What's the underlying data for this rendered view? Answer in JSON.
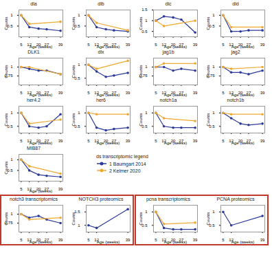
{
  "legend_title": "ds transcriptomic legend",
  "chart_data": [
    {
      "type": "line",
      "title": "dla",
      "x_label": "Age (weeks)",
      "y_label": "Counts",
      "xlim": [
        3,
        41
      ],
      "xticks": [
        5,
        12,
        20,
        27,
        39
      ],
      "ylim": [
        0,
        1.25
      ],
      "yticks": [
        0.5,
        1
      ],
      "series": [
        {
          "name": "1 Baumgart 2014",
          "color": "#2b3a9b",
          "marker": "circle",
          "x": [
            5,
            12,
            20,
            27,
            39
          ],
          "values": [
            1.0,
            0.45,
            0.38,
            0.35,
            0.28
          ]
        },
        {
          "name": "2 Kelmer 2020",
          "color": "#f0a830",
          "marker": "circle",
          "x": [
            5,
            12,
            39
          ],
          "values": [
            1.0,
            0.6,
            0.7
          ]
        }
      ]
    },
    {
      "type": "line",
      "title": "dlb",
      "x_label": "Age (weeks)",
      "y_label": "Counts",
      "xlim": [
        3,
        41
      ],
      "xticks": [
        5,
        12,
        20,
        27,
        39
      ],
      "ylim": [
        0,
        1.25
      ],
      "yticks": [
        0.5,
        1
      ],
      "series": [
        {
          "name": "1 Baumgart 2014",
          "color": "#2b3a9b",
          "marker": "circle",
          "x": [
            5,
            12,
            20,
            27,
            39
          ],
          "values": [
            1.0,
            0.45,
            0.35,
            0.3,
            0.25
          ]
        },
        {
          "name": "2 Kelmer 2020",
          "color": "#f0a830",
          "marker": "circle",
          "x": [
            5,
            12,
            39
          ],
          "values": [
            1.0,
            0.65,
            0.3
          ]
        }
      ]
    },
    {
      "type": "line",
      "title": "dlc",
      "x_label": "Age (weeks)",
      "y_label": "Counts",
      "xlim": [
        3,
        41
      ],
      "xticks": [
        5,
        12,
        20,
        27,
        39
      ],
      "ylim": [
        0.25,
        1.5
      ],
      "yticks": [
        0.5,
        1,
        1.5
      ],
      "series": [
        {
          "name": "1 Baumgart 2014",
          "color": "#2b3a9b",
          "marker": "circle",
          "x": [
            5,
            12,
            20,
            27,
            39
          ],
          "values": [
            1.0,
            1.2,
            1.15,
            1.05,
            0.45
          ]
        },
        {
          "name": "2 Kelmer 2020",
          "color": "#f0a830",
          "marker": "circle",
          "x": [
            5,
            12,
            39
          ],
          "values": [
            1.0,
            0.75,
            1.0
          ]
        }
      ]
    },
    {
      "type": "line",
      "title": "dld",
      "x_label": "Age (weeks)",
      "y_label": "Counts",
      "xlim": [
        3,
        41
      ],
      "xticks": [
        5,
        12,
        20,
        27,
        39
      ],
      "ylim": [
        0,
        1.25
      ],
      "yticks": [
        0.5,
        1
      ],
      "series": [
        {
          "name": "1 Baumgart 2014",
          "color": "#2b3a9b",
          "marker": "circle",
          "x": [
            5,
            12,
            20,
            27,
            39
          ],
          "values": [
            1.0,
            0.25,
            0.25,
            0.3,
            0.3
          ]
        },
        {
          "name": "2 Kelmer 2020",
          "color": "#f0a830",
          "marker": "circle",
          "x": [
            5,
            12,
            39
          ],
          "values": [
            1.0,
            0.45,
            0.45
          ]
        }
      ]
    },
    {
      "type": "line",
      "title": "DLK1",
      "x_label": "Age (weeks)",
      "y_label": "Counts",
      "xlim": [
        3,
        41
      ],
      "xticks": [
        5,
        12,
        20,
        27,
        39
      ],
      "ylim": [
        0.5,
        1.25
      ],
      "yticks": [
        0.75,
        1
      ],
      "series": [
        {
          "name": "1 Baumgart 2014",
          "color": "#2b3a9b",
          "marker": "circle",
          "x": [
            5,
            12,
            20,
            27,
            39
          ],
          "values": [
            1.0,
            0.95,
            0.9,
            0.9,
            0.8
          ]
        },
        {
          "name": "2 Kelmer 2020",
          "color": "#f0a830",
          "marker": "circle",
          "x": [
            5,
            12,
            39
          ],
          "values": [
            1.0,
            1.0,
            0.8
          ]
        }
      ]
    },
    {
      "type": "line",
      "title": "dlx",
      "x_label": "Age (weeks)",
      "y_label": "Counts",
      "xlim": [
        3,
        41
      ],
      "xticks": [
        5,
        12,
        20,
        27,
        39
      ],
      "ylim": [
        0.25,
        1.25
      ],
      "yticks": [
        0.5,
        1
      ],
      "series": [
        {
          "name": "1 Baumgart 2014",
          "color": "#2b3a9b",
          "marker": "circle",
          "x": [
            5,
            12,
            20,
            27,
            39
          ],
          "values": [
            1.0,
            0.75,
            0.55,
            0.6,
            0.7
          ]
        },
        {
          "name": "2 Kelmer 2020",
          "color": "#f0a830",
          "marker": "circle",
          "x": [
            5,
            12,
            39
          ],
          "values": [
            1.0,
            0.85,
            1.15
          ]
        }
      ]
    },
    {
      "type": "line",
      "title": "jag1b",
      "x_label": "Age (weeks)",
      "y_label": "Counts",
      "xlim": [
        3,
        41
      ],
      "xticks": [
        5,
        12,
        20,
        27,
        39
      ],
      "ylim": [
        0.5,
        1.25
      ],
      "yticks": [
        0.75,
        1
      ],
      "series": [
        {
          "name": "1 Baumgart 2014",
          "color": "#2b3a9b",
          "marker": "circle",
          "x": [
            5,
            12,
            20,
            27,
            39
          ],
          "values": [
            1.0,
            1.0,
            0.9,
            0.95,
            0.9
          ]
        },
        {
          "name": "2 Kelmer 2020",
          "color": "#f0a830",
          "marker": "circle",
          "x": [
            5,
            12,
            39
          ],
          "values": [
            1.0,
            1.1,
            1.1
          ]
        }
      ]
    },
    {
      "type": "line",
      "title": "jag2",
      "x_label": "Age (weeks)",
      "y_label": "Counts",
      "xlim": [
        3,
        41
      ],
      "xticks": [
        5,
        12,
        20,
        27,
        39
      ],
      "ylim": [
        0.5,
        1.25
      ],
      "yticks": [
        0.75,
        1
      ],
      "series": [
        {
          "name": "1 Baumgart 2014",
          "color": "#2b3a9b",
          "marker": "circle",
          "x": [
            5,
            12,
            20,
            27,
            39
          ],
          "values": [
            1.0,
            0.85,
            0.85,
            0.8,
            0.9
          ]
        },
        {
          "name": "2 Kelmer 2020",
          "color": "#f0a830",
          "marker": "circle",
          "x": [
            5,
            12,
            39
          ],
          "values": [
            1.0,
            0.95,
            1.0
          ]
        }
      ]
    },
    {
      "type": "line",
      "title": "her4.2",
      "x_label": "Age (weeks)",
      "y_label": "Counts",
      "xlim": [
        3,
        41
      ],
      "xticks": [
        5,
        12,
        20,
        27,
        39
      ],
      "ylim": [
        0.25,
        1.25
      ],
      "yticks": [
        0.5,
        1
      ],
      "series": [
        {
          "name": "1 Baumgart 2014",
          "color": "#2b3a9b",
          "marker": "circle",
          "x": [
            5,
            12,
            20,
            27,
            39
          ],
          "values": [
            1.0,
            0.5,
            0.45,
            0.5,
            0.95
          ]
        },
        {
          "name": "2 Kelmer 2020",
          "color": "#f0a830",
          "marker": "circle",
          "x": [
            5,
            12,
            39
          ],
          "values": [
            1.0,
            0.6,
            0.75
          ]
        }
      ]
    },
    {
      "type": "line",
      "title": "her6",
      "x_label": "Age (weeks)",
      "y_label": "Counts",
      "xlim": [
        3,
        41
      ],
      "xticks": [
        5,
        12,
        20,
        27,
        39
      ],
      "ylim": [
        0.25,
        1.25
      ],
      "yticks": [
        0.5,
        1
      ],
      "series": [
        {
          "name": "1 Baumgart 2014",
          "color": "#2b3a9b",
          "marker": "circle",
          "x": [
            5,
            12,
            20,
            27,
            39
          ],
          "values": [
            1.0,
            0.45,
            0.35,
            0.4,
            0.45
          ]
        },
        {
          "name": "2 Kelmer 2020",
          "color": "#f0a830",
          "marker": "circle",
          "x": [
            5,
            12,
            39
          ],
          "values": [
            1.0,
            0.95,
            0.95
          ]
        }
      ]
    },
    {
      "type": "line",
      "title": "notch1a",
      "x_label": "Age (weeks)",
      "y_label": "Counts",
      "xlim": [
        3,
        41
      ],
      "xticks": [
        5,
        12,
        20,
        27,
        39
      ],
      "ylim": [
        0.25,
        1.25
      ],
      "yticks": [
        0.5,
        1
      ],
      "series": [
        {
          "name": "1 Baumgart 2014",
          "color": "#2b3a9b",
          "marker": "circle",
          "x": [
            5,
            12,
            20,
            27,
            39
          ],
          "values": [
            1.0,
            0.5,
            0.45,
            0.45,
            0.45
          ]
        },
        {
          "name": "2 Kelmer 2020",
          "color": "#f0a830",
          "marker": "circle",
          "x": [
            5,
            12,
            39
          ],
          "values": [
            1.0,
            0.8,
            0.7
          ]
        }
      ]
    },
    {
      "type": "line",
      "title": "notch1b",
      "x_label": "Age (weeks)",
      "y_label": "Counts",
      "xlim": [
        3,
        41
      ],
      "xticks": [
        5,
        12,
        20,
        27,
        39
      ],
      "ylim": [
        0.25,
        1.25
      ],
      "yticks": [
        0.5,
        1
      ],
      "series": [
        {
          "name": "1 Baumgart 2014",
          "color": "#2b3a9b",
          "marker": "circle",
          "x": [
            5,
            12,
            20,
            27,
            39
          ],
          "values": [
            1.0,
            0.8,
            0.6,
            0.55,
            0.6
          ]
        },
        {
          "name": "2 Kelmer 2020",
          "color": "#f0a830",
          "marker": "circle",
          "x": [
            5,
            12,
            39
          ],
          "values": [
            1.0,
            0.95,
            0.95
          ]
        }
      ]
    },
    {
      "type": "line",
      "title": "MIB87",
      "x_label": "Age (weeks)",
      "y_label": "Counts",
      "xlim": [
        3,
        41
      ],
      "xticks": [
        5,
        12,
        20,
        27,
        39
      ],
      "ylim": [
        0,
        1.25
      ],
      "yticks": [
        0.5,
        1
      ],
      "series": [
        {
          "name": "1 Baumgart 2014",
          "color": "#2b3a9b",
          "marker": "circle",
          "x": [
            5,
            12,
            20,
            27,
            39
          ],
          "values": [
            1.0,
            0.5,
            0.3,
            0.25,
            0.2
          ]
        },
        {
          "name": "2 Kelmer 2020",
          "color": "#f0a830",
          "marker": "circle",
          "x": [
            5,
            12,
            39
          ],
          "values": [
            1.0,
            0.7,
            0.35
          ]
        }
      ]
    },
    {
      "type": "line",
      "title": "notch3 transcriptomics",
      "x_label": "Age (weeks)",
      "y_label": "Counts",
      "xlim": [
        3,
        41
      ],
      "xticks": [
        5,
        12,
        20,
        27,
        39
      ],
      "ylim": [
        0.5,
        1.25
      ],
      "yticks": [
        0.75,
        1
      ],
      "series": [
        {
          "name": "1 Baumgart 2014",
          "color": "#2b3a9b",
          "marker": "circle",
          "x": [
            5,
            12,
            20,
            27,
            39
          ],
          "values": [
            1.0,
            0.9,
            0.95,
            0.85,
            0.75
          ]
        },
        {
          "name": "2 Kelmer 2020",
          "color": "#f0a830",
          "marker": "circle",
          "x": [
            5,
            12,
            39
          ],
          "values": [
            1.0,
            0.85,
            0.9
          ]
        }
      ]
    },
    {
      "type": "line",
      "title": "NOTCH3 proteomics",
      "x_label": "Age (weeks)",
      "y_label": "Counts",
      "xlim": [
        3,
        41
      ],
      "xticks": [
        5,
        12,
        39
      ],
      "ylim": [
        0.75,
        1.75
      ],
      "yticks": [
        1,
        1.5
      ],
      "series": [
        {
          "color": "#2b3a9b",
          "marker": "circle",
          "x": [
            5,
            12,
            39
          ],
          "values": [
            1.0,
            0.9,
            1.6
          ]
        }
      ]
    },
    {
      "type": "line",
      "title": "pcna transcriptomics",
      "x_label": "Age (weeks)",
      "y_label": "Counts",
      "xlim": [
        3,
        41
      ],
      "xticks": [
        5,
        12,
        20,
        27,
        39
      ],
      "ylim": [
        0.25,
        1.25
      ],
      "yticks": [
        0.5,
        1
      ],
      "series": [
        {
          "name": "1 Baumgart 2014",
          "color": "#2b3a9b",
          "marker": "circle",
          "x": [
            5,
            12,
            20,
            27,
            39
          ],
          "values": [
            1.0,
            0.4,
            0.35,
            0.35,
            0.35
          ]
        },
        {
          "name": "2 Kelmer 2020",
          "color": "#f0a830",
          "marker": "circle",
          "x": [
            5,
            12,
            39
          ],
          "values": [
            1.0,
            0.55,
            0.6
          ]
        }
      ]
    },
    {
      "type": "line",
      "title": "PCNA proteomics",
      "x_label": "Age (weeks)",
      "y_label": "Counts",
      "xlim": [
        3,
        41
      ],
      "xticks": [
        5,
        12,
        39
      ],
      "ylim": [
        0.25,
        1.25
      ],
      "yticks": [
        0.5,
        1
      ],
      "series": [
        {
          "color": "#2b3a9b",
          "marker": "circle",
          "x": [
            5,
            12,
            39
          ],
          "values": [
            1.0,
            0.5,
            0.85
          ]
        }
      ]
    }
  ]
}
